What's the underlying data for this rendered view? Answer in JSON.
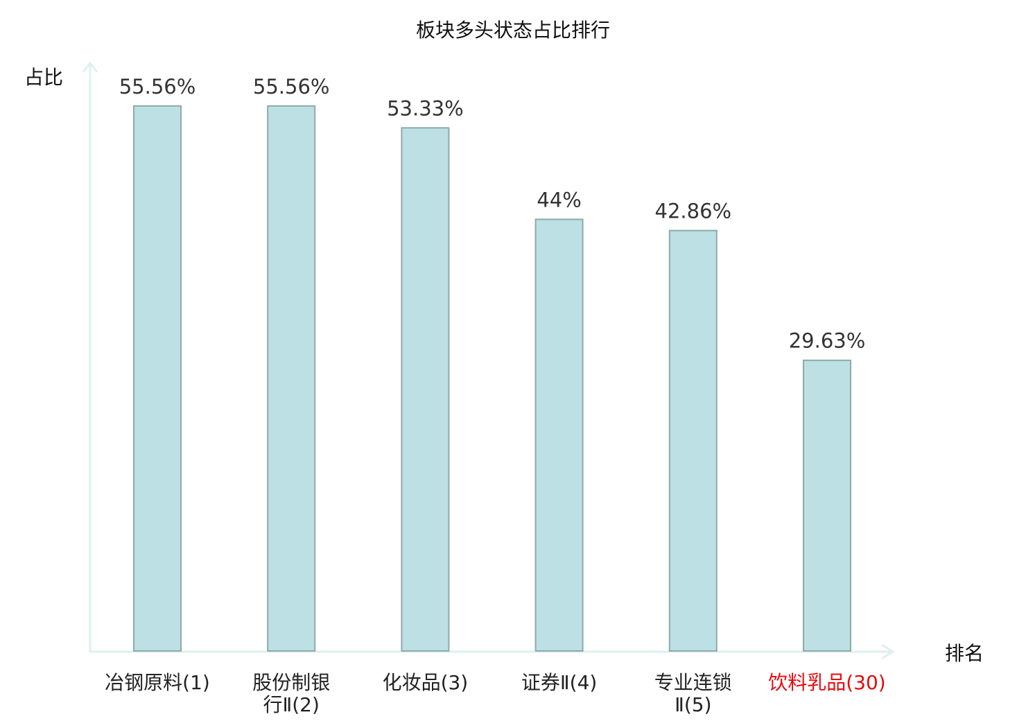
{
  "chart_data": {
    "type": "bar",
    "title": "板块多头状态占比排行",
    "xlabel": "排名",
    "ylabel": "占比",
    "categories": [
      "冶钢原料(1)",
      "股份制银行Ⅱ(2)",
      "化妆品(3)",
      "证券Ⅱ(4)",
      "专业连锁Ⅱ(5)",
      "饮料乳品(30)"
    ],
    "values": [
      55.56,
      55.56,
      53.33,
      44,
      42.86,
      29.63
    ],
    "value_labels": [
      "55.56%",
      "55.56%",
      "53.33%",
      "44%",
      "42.86%",
      "29.63%"
    ],
    "highlight_index": 5,
    "ylim": [
      0,
      60
    ],
    "grid": false,
    "colors": {
      "bar_fill": "#bce0e3",
      "bar_stroke": "#8fa9aa",
      "axis": "#ddf1ef",
      "highlight_label": "#e8090c",
      "label": "#222222",
      "value_label": "#333333"
    }
  }
}
